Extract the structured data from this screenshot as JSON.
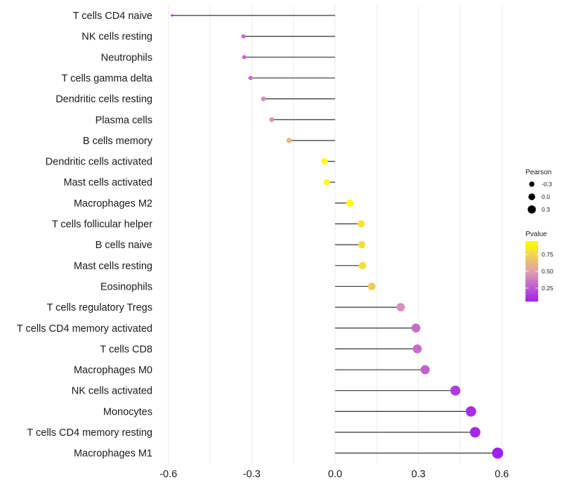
{
  "chart_data": {
    "type": "scatter",
    "subtype": "lollipop",
    "title": "",
    "xlabel": "",
    "ylabel": "",
    "xlim": [
      -0.62,
      0.62
    ],
    "xticks": [
      -0.6,
      -0.3,
      0.0,
      0.3,
      0.6
    ],
    "xtick_labels": [
      "-0.6",
      "-0.3",
      "0.0",
      "0.3",
      "0.6"
    ],
    "grid": true,
    "categories": [
      "T cells CD4 naive",
      "NK cells resting",
      "Neutrophils",
      "T cells gamma delta",
      "Dendritic cells resting",
      "Plasma cells",
      "B cells memory",
      "Dendritic cells activated",
      "Mast cells activated",
      "Macrophages M2",
      "T cells follicular helper",
      "B cells naive",
      "Mast cells resting",
      "Eosinophils",
      "T cells regulatory  Tregs ",
      "T cells CD4 memory activated",
      "T cells CD8",
      "Macrophages M0",
      "NK cells activated",
      "Monocytes",
      "T cells CD4 memory resting",
      "Macrophages M1"
    ],
    "series": [
      {
        "name": "Pearson",
        "values": [
          -0.587,
          -0.33,
          -0.327,
          -0.304,
          -0.258,
          -0.228,
          -0.165,
          -0.038,
          -0.03,
          0.053,
          0.094,
          0.096,
          0.099,
          0.132,
          0.236,
          0.291,
          0.296,
          0.324,
          0.433,
          0.489,
          0.504,
          0.585
        ]
      },
      {
        "name": "Pvalue",
        "values": [
          0.02,
          0.3,
          0.3,
          0.33,
          0.42,
          0.46,
          0.62,
          0.95,
          0.95,
          0.92,
          0.82,
          0.8,
          0.8,
          0.72,
          0.45,
          0.32,
          0.32,
          0.28,
          0.15,
          0.1,
          0.08,
          0.02
        ]
      }
    ],
    "legend": {
      "placement": "right",
      "size": {
        "title": "Pearson",
        "breaks": [
          -0.3,
          0.0,
          0.3
        ],
        "labels": [
          "-0.3",
          "0.0",
          "0.3"
        ]
      },
      "color": {
        "title": "Pvalue",
        "range": [
          0.05,
          0.95
        ],
        "breaks": [
          0.25,
          0.5,
          0.75
        ],
        "labels": [
          "0.25",
          "0.50",
          "0.75"
        ],
        "low_color": "#a020f0",
        "high_color": "#ffff00"
      }
    }
  }
}
